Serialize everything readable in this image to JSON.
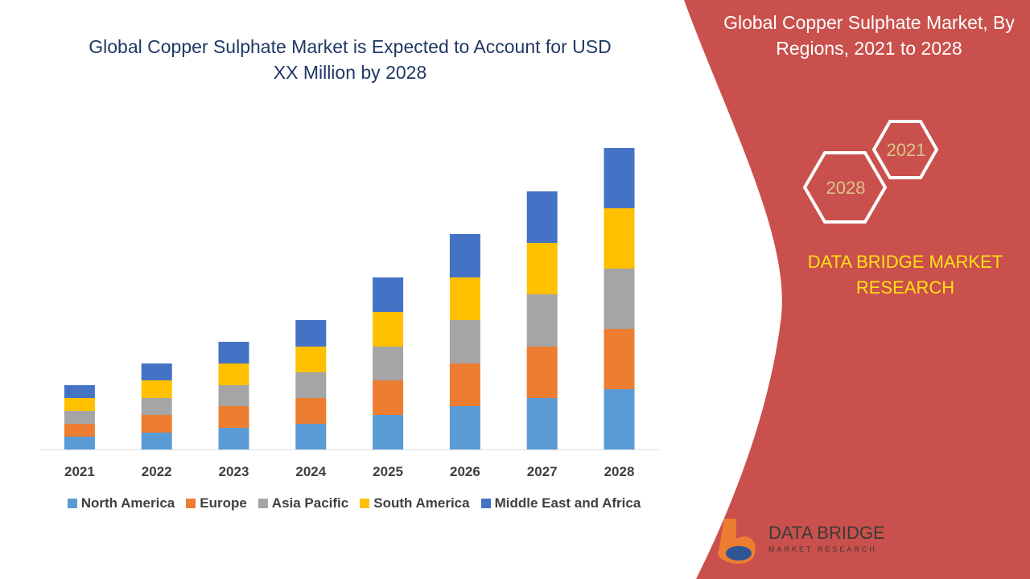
{
  "chart_data": {
    "type": "stacked-bar",
    "title": "Global Copper Sulphate Market is Expected to Account for USD XX Million by 2028",
    "categories": [
      "2021",
      "2022",
      "2023",
      "2024",
      "2025",
      "2026",
      "2027",
      "2028"
    ],
    "series": [
      {
        "name": "North America",
        "color": "#5b9bd5",
        "values": [
          16,
          21,
          27,
          32,
          43,
          54,
          64,
          75
        ]
      },
      {
        "name": "Europe",
        "color": "#ed7d31",
        "values": [
          16,
          22,
          27,
          32,
          43,
          53,
          64,
          75
        ]
      },
      {
        "name": "Asia Pacific",
        "color": "#a5a5a5",
        "values": [
          16,
          21,
          26,
          32,
          42,
          54,
          65,
          75
        ]
      },
      {
        "name": "South America",
        "color": "#ffc000",
        "values": [
          16,
          22,
          27,
          32,
          43,
          53,
          64,
          75
        ]
      },
      {
        "name": "Middle East and Africa",
        "color": "#4472c4",
        "values": [
          16,
          21,
          27,
          33,
          43,
          54,
          64,
          75
        ]
      }
    ]
  },
  "panel": {
    "title": "Global Copper Sulphate Market, By Regions, 2021 to 2028",
    "hex_start": "2021",
    "hex_end": "2028",
    "brand": "DATA BRIDGE MARKET RESEARCH",
    "logo_name": "DATA BRIDGE",
    "logo_sub": "MARKET RESEARCH"
  }
}
